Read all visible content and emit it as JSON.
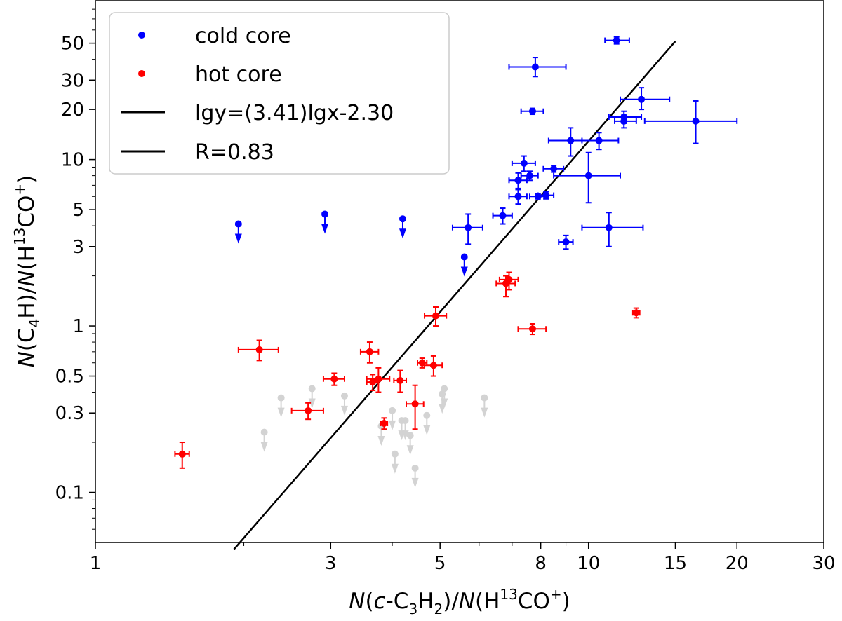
{
  "chart_data": {
    "type": "scatter",
    "xscale": "log",
    "yscale": "log",
    "xlim": [
      1,
      30
    ],
    "ylim": [
      0.05,
      90
    ],
    "xticks": [
      1,
      3,
      5,
      8,
      10,
      15,
      20,
      30
    ],
    "yticks": [
      0.1,
      0.3,
      0.5,
      1,
      3,
      5,
      10,
      20,
      30,
      50
    ],
    "xlabel": {
      "a": "N",
      "b": "(",
      "c": "c",
      "d": "-C",
      "e": "3",
      "f": "H",
      "g": "2",
      "h": ")/",
      "i": "N",
      "j": "(H",
      "k": "13",
      "l": "CO",
      "m": "+",
      "n": ")"
    },
    "ylabel": {
      "a": "N",
      "b": "(C",
      "c": "4",
      "d": "H)/",
      "e": "N",
      "f": "(H",
      "g": "13",
      "h": "CO",
      "i": "+",
      "j": ")"
    },
    "legend": {
      "position": "top-left",
      "entries": [
        "cold core",
        "hot core",
        "lgy=(3.41)lgx-2.30",
        "R=0.83"
      ]
    },
    "fit_line": {
      "slope": 3.41,
      "intercept": -2.3,
      "x_range": [
        1.91,
        15.0
      ],
      "color": "#000000"
    },
    "colors": {
      "cold": "#0000ff",
      "hot": "#ff0000",
      "limit": "#d3d3d3",
      "line": "#000000"
    },
    "series": [
      {
        "name": "cold core",
        "color": "#0000ff",
        "points": [
          {
            "x": 11.4,
            "y": 52,
            "xerr": [
              0.6,
              0.7
            ],
            "yerr": [
              2.5,
              2.5
            ]
          },
          {
            "x": 7.8,
            "y": 36,
            "xerr": [
              0.9,
              1.2
            ],
            "yerr": [
              4.5,
              5.0
            ]
          },
          {
            "x": 12.8,
            "y": 23,
            "xerr": [
              1.2,
              1.8
            ],
            "yerr": [
              3,
              4
            ]
          },
          {
            "x": 7.7,
            "y": 19.5,
            "xerr": [
              0.4,
              0.4
            ],
            "yerr": [
              0.8,
              0.8
            ]
          },
          {
            "x": 11.8,
            "y": 18,
            "xerr": [
              0.8,
              1.0
            ],
            "yerr": [
              1.5,
              1.5
            ]
          },
          {
            "x": 11.8,
            "y": 17,
            "xerr": [
              0.5,
              0.7
            ],
            "yerr": [
              1.5,
              1.5
            ]
          },
          {
            "x": 16.5,
            "y": 17,
            "xerr": [
              3.5,
              3.5
            ],
            "yerr": [
              4.5,
              5.5
            ]
          },
          {
            "x": 9.2,
            "y": 13,
            "xerr": [
              0.9,
              1.3
            ],
            "yerr": [
              2.5,
              2.5
            ]
          },
          {
            "x": 10.5,
            "y": 13,
            "xerr": [
              0.8,
              1.0
            ],
            "yerr": [
              1.5,
              1.5
            ]
          },
          {
            "x": 7.4,
            "y": 9.5,
            "xerr": [
              0.4,
              0.4
            ],
            "yerr": [
              1.0,
              1.0
            ]
          },
          {
            "x": 8.5,
            "y": 8.8,
            "xerr": [
              0.4,
              0.4
            ],
            "yerr": [
              0.4,
              0.4
            ]
          },
          {
            "x": 7.6,
            "y": 8.0,
            "xerr": [
              0.3,
              0.3
            ],
            "yerr": [
              0.5,
              0.5
            ]
          },
          {
            "x": 10.0,
            "y": 8.0,
            "xerr": [
              1.5,
              1.6
            ],
            "yerr": [
              2.5,
              3.0
            ]
          },
          {
            "x": 7.2,
            "y": 7.5,
            "xerr": [
              0.3,
              0.3
            ],
            "yerr": [
              0.8,
              0.8
            ]
          },
          {
            "x": 7.2,
            "y": 6.0,
            "xerr": [
              0.3,
              0.3
            ],
            "yerr": [
              0.6,
              0.6
            ]
          },
          {
            "x": 7.9,
            "y": 6.0,
            "xerr": [
              0.3,
              0.3
            ],
            "yerr": [
              0.2,
              0.2
            ]
          },
          {
            "x": 8.2,
            "y": 6.1,
            "xerr": [
              0.3,
              0.3
            ],
            "yerr": [
              0.3,
              0.3
            ]
          },
          {
            "x": 6.7,
            "y": 4.6,
            "xerr": [
              0.3,
              0.3
            ],
            "yerr": [
              0.5,
              0.5
            ]
          },
          {
            "x": 5.7,
            "y": 3.9,
            "xerr": [
              0.4,
              0.4
            ],
            "yerr": [
              0.8,
              0.8
            ]
          },
          {
            "x": 11.0,
            "y": 3.9,
            "xerr": [
              1.3,
              1.9
            ],
            "yerr": [
              0.9,
              0.9
            ]
          },
          {
            "x": 9.0,
            "y": 3.2,
            "xerr": [
              0.3,
              0.3
            ],
            "yerr": [
              0.3,
              0.3
            ]
          }
        ],
        "upper_limits": [
          {
            "x": 1.95,
            "y": 4.1
          },
          {
            "x": 2.92,
            "y": 4.7
          },
          {
            "x": 4.2,
            "y": 4.4
          },
          {
            "x": 5.6,
            "y": 2.6
          }
        ]
      },
      {
        "name": "hot core",
        "color": "#ff0000",
        "points": [
          {
            "x": 6.9,
            "y": 1.9,
            "xerr": [
              0.3,
              0.3
            ],
            "yerr": [
              0.25,
              0.2
            ]
          },
          {
            "x": 6.8,
            "y": 1.8,
            "xerr": [
              0.3,
              0.3
            ],
            "yerr": [
              0.3,
              0.2
            ]
          },
          {
            "x": 4.9,
            "y": 1.15,
            "xerr": [
              0.25,
              0.25
            ],
            "yerr": [
              0.15,
              0.15
            ]
          },
          {
            "x": 12.5,
            "y": 1.2,
            "xerr": [
              0.2,
              0.2
            ],
            "yerr": [
              0.08,
              0.08
            ]
          },
          {
            "x": 7.7,
            "y": 0.96,
            "xerr": [
              0.5,
              0.5
            ],
            "yerr": [
              0.07,
              0.07
            ]
          },
          {
            "x": 2.15,
            "y": 0.72,
            "xerr": [
              0.2,
              0.2
            ],
            "yerr": [
              0.1,
              0.1
            ]
          },
          {
            "x": 3.6,
            "y": 0.7,
            "xerr": [
              0.15,
              0.15
            ],
            "yerr": [
              0.1,
              0.1
            ]
          },
          {
            "x": 4.6,
            "y": 0.6,
            "xerr": [
              0.1,
              0.1
            ],
            "yerr": [
              0.04,
              0.04
            ]
          },
          {
            "x": 4.85,
            "y": 0.58,
            "xerr": [
              0.2,
              0.2
            ],
            "yerr": [
              0.08,
              0.08
            ]
          },
          {
            "x": 3.05,
            "y": 0.48,
            "xerr": [
              0.15,
              0.15
            ],
            "yerr": [
              0.04,
              0.04
            ]
          },
          {
            "x": 3.75,
            "y": 0.48,
            "xerr": [
              0.2,
              0.2
            ],
            "yerr": [
              0.08,
              0.08
            ]
          },
          {
            "x": 3.65,
            "y": 0.46,
            "xerr": [
              0.1,
              0.1
            ],
            "yerr": [
              0.05,
              0.05
            ]
          },
          {
            "x": 4.15,
            "y": 0.47,
            "xerr": [
              0.12,
              0.12
            ],
            "yerr": [
              0.07,
              0.07
            ]
          },
          {
            "x": 4.45,
            "y": 0.34,
            "xerr": [
              0.18,
              0.18
            ],
            "yerr": [
              0.1,
              0.1
            ]
          },
          {
            "x": 2.7,
            "y": 0.31,
            "xerr": [
              0.2,
              0.2
            ],
            "yerr": [
              0.035,
              0.035
            ]
          },
          {
            "x": 3.85,
            "y": 0.26,
            "xerr": [
              0.06,
              0.06
            ],
            "yerr": [
              0.02,
              0.02
            ]
          },
          {
            "x": 1.5,
            "y": 0.17,
            "xerr": [
              0.05,
              0.05
            ],
            "yerr": [
              0.03,
              0.03
            ]
          }
        ]
      },
      {
        "name": "upper limits",
        "color": "#d3d3d3",
        "upper_limits": [
          {
            "x": 2.38,
            "y": 0.37
          },
          {
            "x": 2.75,
            "y": 0.42
          },
          {
            "x": 3.2,
            "y": 0.38
          },
          {
            "x": 3.8,
            "y": 0.25
          },
          {
            "x": 2.2,
            "y": 0.23
          },
          {
            "x": 4.0,
            "y": 0.31
          },
          {
            "x": 4.18,
            "y": 0.27
          },
          {
            "x": 4.25,
            "y": 0.27
          },
          {
            "x": 4.35,
            "y": 0.22
          },
          {
            "x": 4.7,
            "y": 0.29
          },
          {
            "x": 5.05,
            "y": 0.39
          },
          {
            "x": 5.1,
            "y": 0.42
          },
          {
            "x": 6.15,
            "y": 0.37
          },
          {
            "x": 4.05,
            "y": 0.17
          },
          {
            "x": 4.45,
            "y": 0.14
          }
        ]
      }
    ]
  }
}
